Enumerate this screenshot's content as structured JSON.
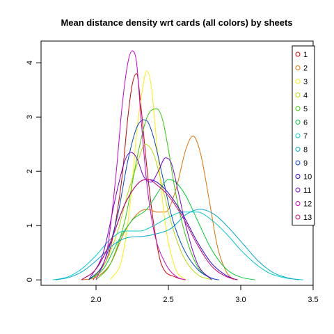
{
  "chart_data": {
    "type": "line",
    "title": "Mean distance density wrt cards (all colors) by sheets",
    "xlabel": "",
    "ylabel": "",
    "xlim": [
      1.62,
      3.5
    ],
    "ylim": [
      -0.1,
      4.4
    ],
    "x_ticks": [
      2.0,
      2.5,
      3.0,
      3.5
    ],
    "x_tick_labels": [
      "2.0",
      "2.5",
      "3.0",
      "3.5"
    ],
    "y_ticks": [
      0,
      1,
      2,
      3,
      4
    ],
    "y_tick_labels": [
      "0",
      "1",
      "2",
      "3",
      "4"
    ],
    "grid": false,
    "legend_position": "right",
    "series": [
      {
        "name": "1",
        "color": "#cc0000",
        "x": [
          1.98,
          2.1,
          2.18,
          2.22,
          2.25,
          2.28,
          2.31,
          2.35,
          2.4,
          2.45,
          2.55,
          2.62
        ],
        "y": [
          0.0,
          0.6,
          1.9,
          3.0,
          3.6,
          3.8,
          3.2,
          2.1,
          1.0,
          0.3,
          0.05,
          0.0
        ]
      },
      {
        "name": "2",
        "color": "#e07000",
        "x": [
          1.9,
          2.0,
          2.1,
          2.2,
          2.3,
          2.36,
          2.42,
          2.48,
          2.55,
          2.62,
          2.67,
          2.72,
          2.78,
          2.84,
          2.9,
          2.95
        ],
        "y": [
          0.0,
          0.05,
          0.3,
          0.9,
          1.25,
          1.3,
          1.25,
          1.25,
          1.65,
          2.4,
          2.65,
          2.35,
          1.5,
          0.6,
          0.15,
          0.0
        ]
      },
      {
        "name": "3",
        "color": "#ffee00",
        "x": [
          2.1,
          2.18,
          2.24,
          2.28,
          2.32,
          2.35,
          2.38,
          2.42,
          2.48,
          2.55,
          2.62
        ],
        "y": [
          0.0,
          0.4,
          1.5,
          2.7,
          3.5,
          3.85,
          3.6,
          2.5,
          1.0,
          0.2,
          0.0
        ]
      },
      {
        "name": "4",
        "color": "#b8dd00",
        "x": [
          1.95,
          2.05,
          2.15,
          2.22,
          2.28,
          2.34,
          2.4,
          2.46,
          2.52,
          2.6,
          2.7,
          2.8
        ],
        "y": [
          0.0,
          0.25,
          0.9,
          1.6,
          2.1,
          2.5,
          2.3,
          1.7,
          1.05,
          0.45,
          0.1,
          0.0
        ]
      },
      {
        "name": "5",
        "color": "#33cc00",
        "x": [
          2.0,
          2.1,
          2.2,
          2.28,
          2.34,
          2.38,
          2.42,
          2.46,
          2.5,
          2.55,
          2.62,
          2.7,
          2.8
        ],
        "y": [
          0.0,
          0.3,
          1.1,
          2.2,
          2.9,
          3.12,
          3.15,
          2.95,
          2.4,
          1.6,
          0.8,
          0.25,
          0.0
        ]
      },
      {
        "name": "6",
        "color": "#00cc33",
        "x": [
          1.95,
          2.05,
          2.15,
          2.25,
          2.35,
          2.45,
          2.5,
          2.55,
          2.62,
          2.7,
          2.8,
          2.9,
          3.0,
          3.1
        ],
        "y": [
          0.0,
          0.2,
          0.7,
          1.1,
          1.3,
          1.7,
          1.85,
          1.8,
          1.55,
          1.1,
          0.55,
          0.2,
          0.05,
          0.0
        ]
      },
      {
        "name": "7",
        "color": "#00cccc",
        "x": [
          1.7,
          1.8,
          1.9,
          2.0,
          2.1,
          2.2,
          2.3,
          2.4,
          2.5,
          2.6,
          2.7,
          2.8,
          2.9,
          3.0,
          3.1,
          3.2,
          3.3,
          3.43
        ],
        "y": [
          0.0,
          0.05,
          0.2,
          0.45,
          0.75,
          0.9,
          0.9,
          1.0,
          1.15,
          1.25,
          1.25,
          1.1,
          0.85,
          0.55,
          0.3,
          0.12,
          0.04,
          0.0
        ]
      },
      {
        "name": "8",
        "color": "#00aacc",
        "x": [
          1.72,
          1.82,
          1.92,
          2.02,
          2.12,
          2.22,
          2.32,
          2.42,
          2.52,
          2.62,
          2.72,
          2.82,
          2.92,
          3.02,
          3.12,
          3.22,
          3.32,
          3.4
        ],
        "y": [
          0.0,
          0.05,
          0.18,
          0.4,
          0.65,
          0.78,
          0.8,
          0.85,
          0.95,
          1.2,
          1.3,
          1.2,
          0.95,
          0.65,
          0.35,
          0.14,
          0.04,
          0.0
        ]
      },
      {
        "name": "9",
        "color": "#0044cc",
        "x": [
          1.95,
          2.05,
          2.15,
          2.22,
          2.28,
          2.33,
          2.36,
          2.4,
          2.46,
          2.52,
          2.6,
          2.7,
          2.8,
          2.85
        ],
        "y": [
          0.0,
          0.3,
          1.2,
          2.2,
          2.8,
          2.95,
          2.9,
          2.6,
          1.9,
          1.2,
          0.6,
          0.2,
          0.03,
          0.0
        ]
      },
      {
        "name": "10",
        "color": "#3300cc",
        "x": [
          1.9,
          2.0,
          2.1,
          2.2,
          2.3,
          2.36,
          2.42,
          2.5,
          2.6,
          2.7,
          2.8,
          2.9,
          2.97
        ],
        "y": [
          0.0,
          0.2,
          0.7,
          1.4,
          1.8,
          1.85,
          1.8,
          1.6,
          1.2,
          0.7,
          0.3,
          0.08,
          0.0
        ]
      },
      {
        "name": "11",
        "color": "#7700cc",
        "x": [
          1.95,
          2.05,
          2.15,
          2.2,
          2.24,
          2.28,
          2.33,
          2.38,
          2.43,
          2.48,
          2.52,
          2.57,
          2.62,
          2.7,
          2.8
        ],
        "y": [
          0.0,
          0.5,
          1.7,
          2.2,
          2.35,
          2.25,
          1.9,
          1.8,
          2.0,
          2.25,
          2.15,
          1.6,
          1.0,
          0.3,
          0.0
        ]
      },
      {
        "name": "12",
        "color": "#cc00cc",
        "x": [
          2.0,
          2.08,
          2.14,
          2.18,
          2.22,
          2.25,
          2.28,
          2.31,
          2.35,
          2.4,
          2.48,
          2.56,
          2.62
        ],
        "y": [
          0.0,
          0.6,
          2.0,
          3.2,
          4.0,
          4.22,
          4.0,
          3.0,
          1.8,
          0.9,
          0.3,
          0.05,
          0.0
        ]
      },
      {
        "name": "13",
        "color": "#cc0077",
        "x": [
          1.9,
          2.0,
          2.1,
          2.2,
          2.3,
          2.36,
          2.42,
          2.5,
          2.6,
          2.7,
          2.8,
          2.9,
          2.98
        ],
        "y": [
          0.0,
          0.2,
          0.7,
          1.4,
          1.8,
          1.85,
          1.75,
          1.55,
          1.15,
          0.65,
          0.25,
          0.06,
          0.0
        ]
      }
    ]
  }
}
